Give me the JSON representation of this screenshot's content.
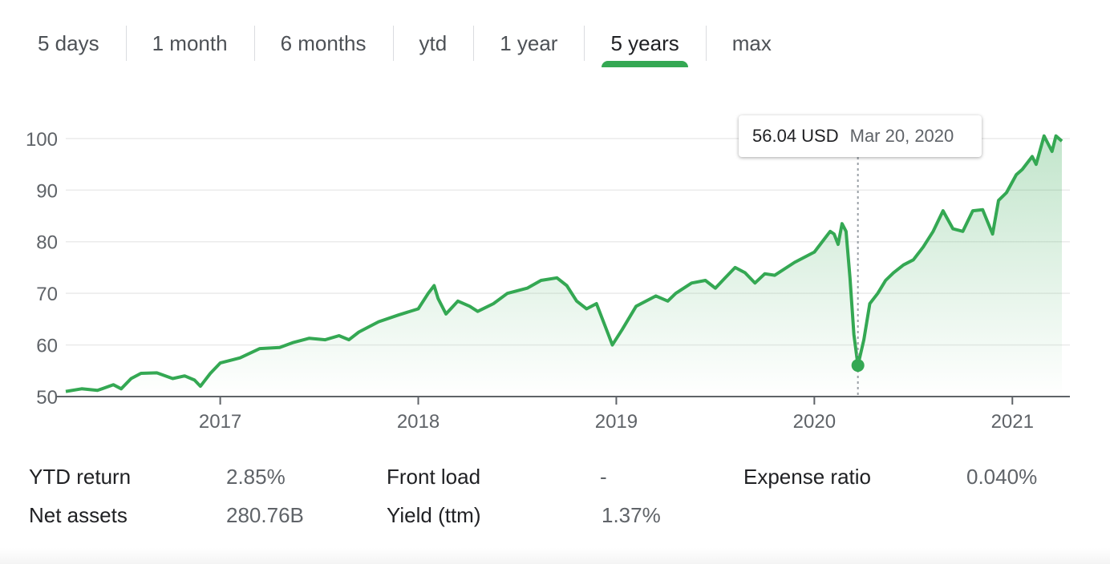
{
  "tabs": [
    {
      "label": "5 days",
      "active": false
    },
    {
      "label": "1 month",
      "active": false
    },
    {
      "label": "6 months",
      "active": false
    },
    {
      "label": "ytd",
      "active": false
    },
    {
      "label": "1 year",
      "active": false
    },
    {
      "label": "5 years",
      "active": true
    },
    {
      "label": "max",
      "active": false
    }
  ],
  "tooltip": {
    "value": "56.04 USD",
    "date": "Mar 20, 2020"
  },
  "colors": {
    "line": "#34a853",
    "area_top": "#34a853",
    "axis": "#5f6368",
    "grid": "#ebebeb",
    "crosshair": "#9aa0a6"
  },
  "chart_data": {
    "type": "area",
    "ylim": [
      50,
      102
    ],
    "yticks": [
      50,
      60,
      70,
      80,
      90,
      100
    ],
    "xlim": [
      2016.22,
      2021.25
    ],
    "xticks": [
      {
        "value": 2017,
        "label": "2017"
      },
      {
        "value": 2018,
        "label": "2018"
      },
      {
        "value": 2019,
        "label": "2019"
      },
      {
        "value": 2020,
        "label": "2020"
      },
      {
        "value": 2021,
        "label": "2021"
      }
    ],
    "grid": true,
    "highlight": {
      "x": 2020.22,
      "y": 56.04
    },
    "x": [
      2016.22,
      2016.3,
      2016.38,
      2016.46,
      2016.5,
      2016.55,
      2016.6,
      2016.68,
      2016.76,
      2016.82,
      2016.87,
      2016.9,
      2016.95,
      2017.0,
      2017.1,
      2017.2,
      2017.3,
      2017.37,
      2017.45,
      2017.53,
      2017.6,
      2017.65,
      2017.7,
      2017.75,
      2017.8,
      2017.9,
      2018.0,
      2018.05,
      2018.08,
      2018.1,
      2018.14,
      2018.2,
      2018.26,
      2018.3,
      2018.38,
      2018.45,
      2018.55,
      2018.62,
      2018.7,
      2018.75,
      2018.8,
      2018.85,
      2018.9,
      2018.96,
      2018.98,
      2019.03,
      2019.1,
      2019.2,
      2019.26,
      2019.3,
      2019.38,
      2019.45,
      2019.5,
      2019.55,
      2019.6,
      2019.65,
      2019.7,
      2019.75,
      2019.8,
      2019.9,
      2020.0,
      2020.05,
      2020.08,
      2020.1,
      2020.12,
      2020.14,
      2020.16,
      2020.18,
      2020.2,
      2020.22,
      2020.25,
      2020.28,
      2020.32,
      2020.36,
      2020.4,
      2020.45,
      2020.5,
      2020.55,
      2020.6,
      2020.65,
      2020.7,
      2020.75,
      2020.8,
      2020.85,
      2020.9,
      2020.93,
      2020.97,
      2021.02,
      2021.05,
      2021.1,
      2021.12,
      2021.16,
      2021.2,
      2021.22,
      2021.25
    ],
    "series": [
      {
        "values": [
          51.0,
          51.5,
          51.2,
          52.3,
          51.5,
          53.5,
          54.5,
          54.6,
          53.5,
          54.0,
          53.2,
          52.0,
          54.5,
          56.5,
          57.5,
          59.3,
          59.5,
          60.5,
          61.3,
          61.0,
          61.8,
          61.0,
          62.5,
          63.5,
          64.5,
          65.8,
          67.0,
          70.0,
          71.5,
          69.0,
          66.0,
          68.5,
          67.5,
          66.5,
          68.0,
          70.0,
          71.0,
          72.5,
          73.0,
          71.5,
          68.5,
          67.0,
          68.0,
          62.0,
          60.0,
          63.0,
          67.5,
          69.5,
          68.5,
          70.0,
          72.0,
          72.5,
          71.0,
          73.0,
          75.0,
          74.0,
          72.0,
          73.8,
          73.5,
          76.0,
          78.0,
          80.5,
          82.0,
          81.5,
          79.5,
          83.5,
          82.0,
          73.0,
          62.0,
          56.04,
          61.0,
          68.0,
          70.0,
          72.5,
          74.0,
          75.5,
          76.5,
          79.0,
          82.0,
          86.0,
          82.5,
          82.0,
          86.0,
          86.2,
          81.5,
          88.0,
          89.5,
          93.0,
          94.0,
          96.5,
          95.0,
          100.5,
          97.5,
          100.5,
          99.5
        ]
      }
    ]
  },
  "stats": [
    [
      {
        "label": "YTD return",
        "value": "2.85%"
      },
      {
        "label": "Front load",
        "value": "-"
      },
      {
        "label": "Expense ratio",
        "value": "0.040%"
      }
    ],
    [
      {
        "label": "Net assets",
        "value": "280.76B"
      },
      {
        "label": "Yield (ttm)",
        "value": "1.37%"
      }
    ]
  ]
}
